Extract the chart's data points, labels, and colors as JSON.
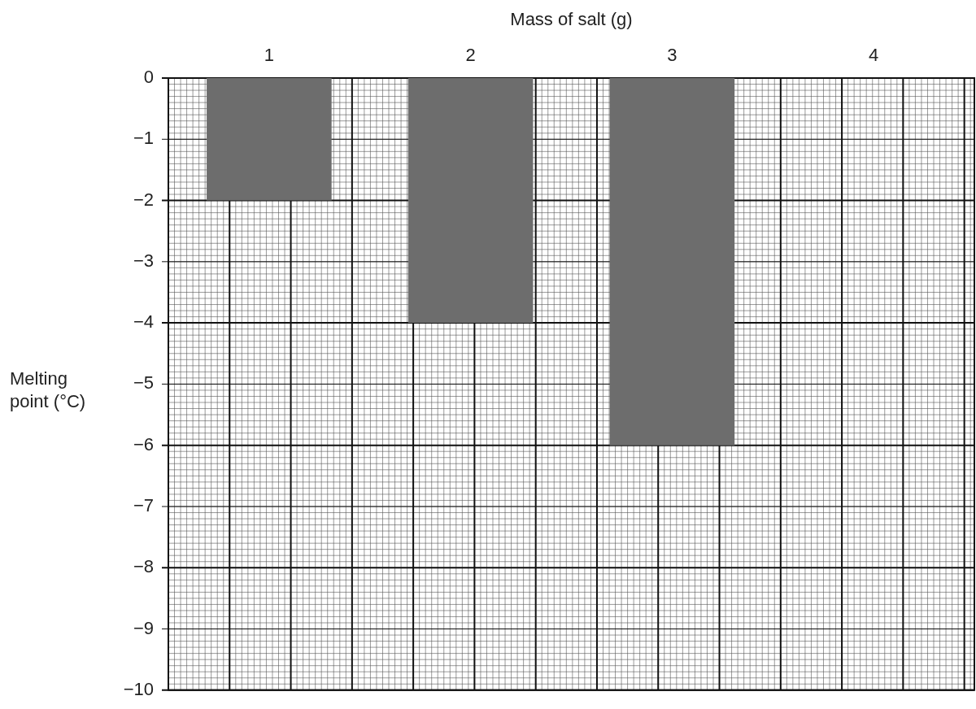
{
  "chart_data": {
    "type": "bar",
    "xlabel": "Mass of salt (g)",
    "ylabel": "Melting point (°C)",
    "categories": [
      "1",
      "2",
      "3",
      "4"
    ],
    "values": [
      -2,
      -4,
      -6,
      null
    ],
    "color": "#6d6d6d",
    "ylim": [
      -10,
      0
    ],
    "yticks": [
      0,
      {
        "value": -1,
        "label": "−1"
      },
      {
        "value": -2,
        "label": "−2"
      },
      {
        "value": -3,
        "label": "−3"
      },
      {
        "value": -4,
        "label": "−4"
      },
      {
        "value": -5,
        "label": "−5"
      },
      {
        "value": -6,
        "label": "−6"
      },
      {
        "value": -7,
        "label": "−7"
      },
      {
        "value": -8,
        "label": "−8"
      },
      {
        "value": -9,
        "label": "−9"
      },
      {
        "value": -10,
        "label": "−10"
      }
    ],
    "grid": true
  }
}
